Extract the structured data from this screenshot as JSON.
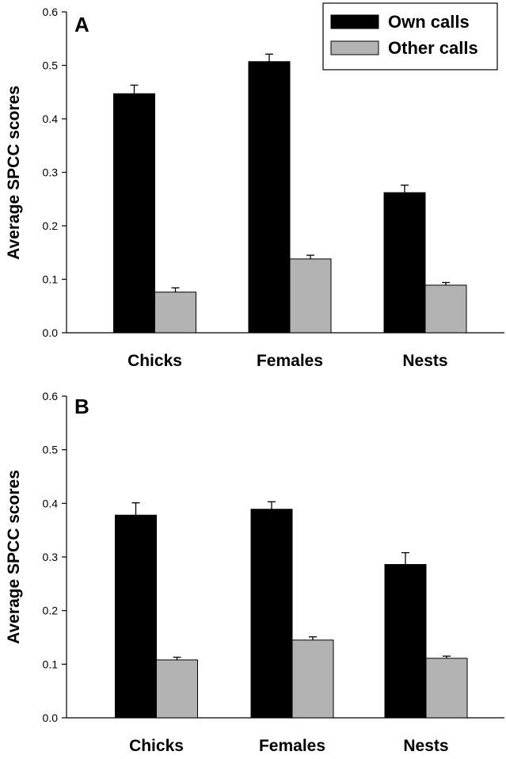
{
  "chart_data": [
    {
      "type": "bar",
      "panel_label": "A",
      "title": "",
      "xlabel": "",
      "ylabel": "Average SPCC scores",
      "ylim": [
        0,
        0.6
      ],
      "yticks": [
        "0.0",
        "0.1",
        "0.2",
        "0.3",
        "0.4",
        "0.5",
        "0.6"
      ],
      "categories": [
        "Chicks",
        "Females",
        "Nests"
      ],
      "series": [
        {
          "name": "Own calls",
          "color": "#000000",
          "values": [
            0.447,
            0.507,
            0.262
          ],
          "errors": [
            0.016,
            0.014,
            0.014
          ]
        },
        {
          "name": "Other calls",
          "color": "#b3b3b3",
          "values": [
            0.076,
            0.138,
            0.089
          ],
          "errors": [
            0.008,
            0.007,
            0.005
          ]
        }
      ],
      "legend": {
        "position": "top-right"
      },
      "grid": false
    },
    {
      "type": "bar",
      "panel_label": "B",
      "title": "",
      "xlabel": "",
      "ylabel": "Average SPCC scores",
      "ylim": [
        0,
        0.6
      ],
      "yticks": [
        "0.0",
        "0.1",
        "0.2",
        "0.3",
        "0.4",
        "0.5",
        "0.6"
      ],
      "categories": [
        "Chicks",
        "Females",
        "Nests"
      ],
      "series": [
        {
          "name": "Own calls",
          "color": "#000000",
          "values": [
            0.378,
            0.389,
            0.286
          ],
          "errors": [
            0.023,
            0.014,
            0.022
          ]
        },
        {
          "name": "Other calls",
          "color": "#b3b3b3",
          "values": [
            0.108,
            0.145,
            0.111
          ],
          "errors": [
            0.005,
            0.006,
            0.004
          ]
        }
      ],
      "legend": null,
      "grid": false
    }
  ]
}
